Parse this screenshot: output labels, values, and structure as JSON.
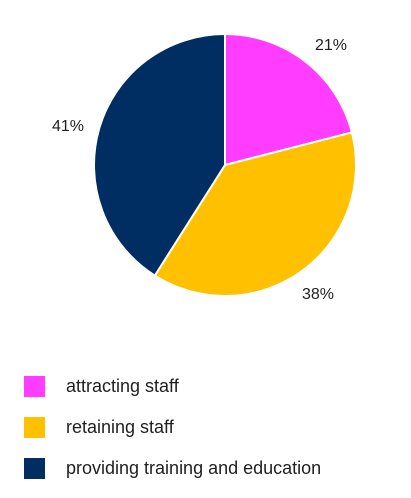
{
  "chart_data": {
    "type": "pie",
    "title": "",
    "categories": [
      "attracting staff",
      "retaining staff",
      "providing training and education"
    ],
    "values": [
      21,
      38,
      41
    ],
    "labels": [
      "21%",
      "38%",
      "41%"
    ],
    "colors": [
      "#FF3CFF",
      "#FFC000",
      "#002E62"
    ],
    "start_angle_deg": 0,
    "direction": "clockwise",
    "legend_position": "bottom"
  }
}
